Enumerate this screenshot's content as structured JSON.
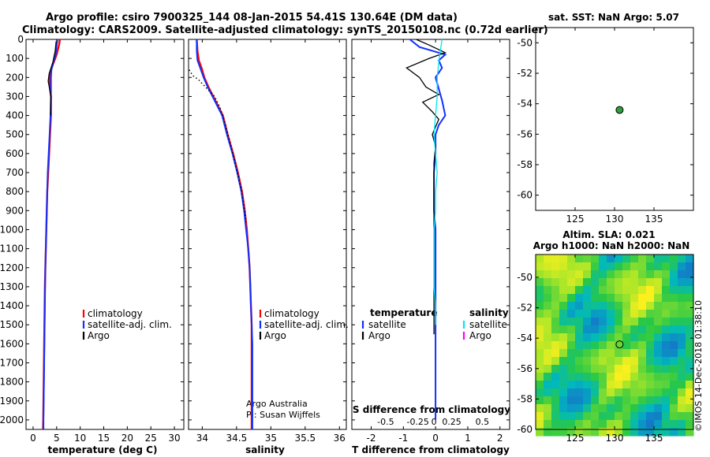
{
  "header": {
    "line1": "Argo profile: csiro 7900325_144 08-Jan-2015 54.41S 130.64E (DM data)",
    "line2": "Climatology: CARS2009. Satellite-adjusted climatology: synTS_20150108.nc (0.72d earlier)"
  },
  "colors": {
    "climatology": "#ff0000",
    "satellite": "#1030ff",
    "argo": "#000000",
    "sat_salinity": "#00e5ee",
    "argo_salinity": "#ff00ff",
    "marker": "#2e9e3a"
  },
  "chart_data": [
    {
      "id": "temperature",
      "type": "line",
      "xlabel": "temperature (deg C)",
      "ylabel": "",
      "xlim": [
        -1.5,
        32
      ],
      "ylim": [
        2050,
        0
      ],
      "x_ticks": [
        0,
        5,
        10,
        15,
        20,
        25,
        30
      ],
      "y_ticks": [
        0,
        100,
        200,
        300,
        400,
        500,
        600,
        700,
        800,
        900,
        1000,
        1100,
        1200,
        1300,
        1400,
        1500,
        1600,
        1700,
        1800,
        1900,
        2000
      ],
      "legend": {
        "placement": "center-right",
        "entries": [
          "climatology",
          "satellite-adj. clim.",
          "Argo"
        ]
      },
      "series": [
        {
          "name": "climatology",
          "color": "#ff0000",
          "points": [
            [
              5.7,
              0
            ],
            [
              5.5,
              30
            ],
            [
              5.0,
              80
            ],
            [
              4.4,
              120
            ],
            [
              3.8,
              160
            ],
            [
              3.5,
              200
            ],
            [
              3.6,
              260
            ],
            [
              3.8,
              300
            ],
            [
              3.8,
              400
            ],
            [
              3.6,
              500
            ],
            [
              3.4,
              600
            ],
            [
              3.2,
              700
            ],
            [
              3.0,
              800
            ],
            [
              2.9,
              900
            ],
            [
              2.8,
              1000
            ],
            [
              2.7,
              1100
            ],
            [
              2.6,
              1200
            ],
            [
              2.5,
              1300
            ],
            [
              2.45,
              1400
            ],
            [
              2.4,
              1500
            ],
            [
              2.35,
              1600
            ],
            [
              2.3,
              1700
            ],
            [
              2.25,
              1800
            ],
            [
              2.2,
              1900
            ],
            [
              2.15,
              2000
            ],
            [
              2.1,
              2050
            ]
          ]
        },
        {
          "name": "satellite-adj. clim.",
          "color": "#1030ff",
          "points": [
            [
              5.2,
              0
            ],
            [
              5.0,
              30
            ],
            [
              4.8,
              80
            ],
            [
              4.3,
              120
            ],
            [
              3.9,
              160
            ],
            [
              3.8,
              200
            ],
            [
              3.8,
              260
            ],
            [
              3.8,
              300
            ],
            [
              3.7,
              400
            ],
            [
              3.5,
              500
            ],
            [
              3.3,
              600
            ],
            [
              3.1,
              700
            ],
            [
              3.0,
              800
            ],
            [
              2.9,
              900
            ],
            [
              2.8,
              1000
            ],
            [
              2.7,
              1100
            ],
            [
              2.6,
              1200
            ],
            [
              2.55,
              1300
            ],
            [
              2.5,
              1400
            ],
            [
              2.45,
              1500
            ],
            [
              2.4,
              1600
            ],
            [
              2.35,
              1700
            ],
            [
              2.3,
              1800
            ],
            [
              2.25,
              1900
            ],
            [
              2.2,
              2000
            ],
            [
              2.2,
              2050
            ]
          ]
        },
        {
          "name": "Argo",
          "color": "#000000",
          "points": [
            [
              4.9,
              10
            ],
            [
              4.7,
              60
            ],
            [
              4.2,
              120
            ],
            [
              3.4,
              180
            ],
            [
              3.2,
              220
            ],
            [
              3.5,
              260
            ],
            [
              3.8,
              300
            ],
            [
              3.7,
              400
            ]
          ]
        }
      ]
    },
    {
      "id": "salinity",
      "type": "line",
      "xlabel": "salinity",
      "ylabel": "",
      "xlim": [
        33.8,
        36.1
      ],
      "ylim": [
        2050,
        0
      ],
      "x_ticks": [
        34,
        34.5,
        35,
        35.5,
        36
      ],
      "legend": {
        "placement": "center-right",
        "entries": [
          "climatology",
          "satellite-adj. clim.",
          "Argo"
        ]
      },
      "annotations": [
        "Argo Australia",
        "PI: Susan Wijffels"
      ],
      "series": [
        {
          "name": "climatology",
          "color": "#ff0000",
          "points": [
            [
              33.92,
              0
            ],
            [
              33.93,
              60
            ],
            [
              33.95,
              110
            ],
            [
              33.99,
              150
            ],
            [
              34.03,
              200
            ],
            [
              34.09,
              250
            ],
            [
              34.16,
              300
            ],
            [
              34.23,
              350
            ],
            [
              34.3,
              400
            ],
            [
              34.37,
              500
            ],
            [
              34.45,
              600
            ],
            [
              34.52,
              700
            ],
            [
              34.58,
              800
            ],
            [
              34.62,
              900
            ],
            [
              34.65,
              1000
            ],
            [
              34.67,
              1100
            ],
            [
              34.69,
              1200
            ],
            [
              34.7,
              1300
            ],
            [
              34.71,
              1400
            ],
            [
              34.72,
              1500
            ],
            [
              34.72,
              1600
            ],
            [
              34.72,
              1700
            ],
            [
              34.72,
              1800
            ],
            [
              34.72,
              1900
            ],
            [
              34.72,
              2000
            ],
            [
              34.72,
              2050
            ]
          ]
        },
        {
          "name": "satellite-adj. clim.",
          "color": "#1030ff",
          "points": [
            [
              33.92,
              0
            ],
            [
              33.92,
              60
            ],
            [
              33.93,
              110
            ],
            [
              33.97,
              150
            ],
            [
              34.02,
              200
            ],
            [
              34.08,
              250
            ],
            [
              34.15,
              300
            ],
            [
              34.22,
              350
            ],
            [
              34.29,
              400
            ],
            [
              34.36,
              500
            ],
            [
              34.44,
              600
            ],
            [
              34.51,
              700
            ],
            [
              34.57,
              800
            ],
            [
              34.61,
              900
            ],
            [
              34.64,
              1000
            ],
            [
              34.67,
              1100
            ],
            [
              34.69,
              1200
            ],
            [
              34.7,
              1300
            ],
            [
              34.71,
              1400
            ],
            [
              34.72,
              1500
            ],
            [
              34.73,
              1600
            ],
            [
              34.73,
              1700
            ],
            [
              34.73,
              1800
            ],
            [
              34.73,
              1900
            ],
            [
              34.73,
              2000
            ],
            [
              34.73,
              2050
            ]
          ]
        },
        {
          "name": "Argo",
          "color": "#000000",
          "dotted": true,
          "points": [
            [
              33.81,
              160
            ],
            [
              33.86,
              190
            ],
            [
              33.94,
              210
            ],
            [
              34.02,
              240
            ],
            [
              34.1,
              270
            ],
            [
              34.18,
              300
            ],
            [
              34.26,
              360
            ],
            [
              34.34,
              450
            ],
            [
              34.41,
              550
            ],
            [
              34.48,
              650
            ],
            [
              34.55,
              760
            ],
            [
              34.6,
              860
            ],
            [
              34.64,
              960
            ]
          ]
        }
      ]
    },
    {
      "id": "difference",
      "type": "line",
      "xlabel": "T difference from climatology",
      "secondary_label": "S difference from climatology",
      "xlim": [
        -2.6,
        2.3
      ],
      "ylim": [
        2050,
        0
      ],
      "x_ticks": [
        -2,
        -1,
        0,
        1,
        2
      ],
      "s_ticks": [
        "-0.5",
        "-0.25",
        "0",
        "0.25",
        "0.5"
      ],
      "legend": {
        "placement": "lower-center",
        "temperature_title": "temperature",
        "salinity_title": "salinity",
        "entries": [
          "satellite",
          "Argo",
          "satellite",
          "Argo"
        ]
      },
      "series": [
        {
          "name": "satellite",
          "color": "#1030ff",
          "points": [
            [
              -0.8,
              0
            ],
            [
              -0.5,
              40
            ],
            [
              0.3,
              80
            ],
            [
              0.1,
              110
            ],
            [
              0.2,
              150
            ],
            [
              0.0,
              200
            ],
            [
              0.1,
              260
            ],
            [
              0.2,
              320
            ],
            [
              0.3,
              400
            ],
            [
              0.1,
              450
            ],
            [
              0.0,
              500
            ],
            [
              0.0,
              600
            ],
            [
              -0.05,
              700
            ],
            [
              -0.05,
              800
            ],
            [
              -0.05,
              900
            ],
            [
              0.0,
              1000
            ],
            [
              0.0,
              1200
            ],
            [
              0.0,
              1400
            ],
            [
              0.0,
              1600
            ],
            [
              0.0,
              1800
            ],
            [
              0.0,
              2000
            ]
          ]
        },
        {
          "name": "Argo",
          "color": "#000000",
          "points": [
            [
              -0.6,
              0
            ],
            [
              -0.2,
              30
            ],
            [
              0.3,
              70
            ],
            [
              -0.2,
              100
            ],
            [
              -0.9,
              150
            ],
            [
              -0.5,
              200
            ],
            [
              -0.3,
              250
            ],
            [
              0.1,
              290
            ],
            [
              -0.4,
              330
            ],
            [
              -0.1,
              380
            ],
            [
              0.1,
              420
            ],
            [
              -0.1,
              500
            ],
            [
              0.0,
              560
            ],
            [
              -0.05,
              650
            ],
            [
              -0.05,
              800
            ],
            [
              -0.05,
              1000
            ],
            [
              -0.05,
              1200
            ],
            [
              -0.05,
              1400
            ],
            [
              -0.05,
              1550
            ]
          ]
        },
        {
          "name": "satellite salinity",
          "color": "#00e5ee",
          "points": [
            [
              0.2,
              0
            ],
            [
              0.15,
              60
            ],
            [
              0.1,
              120
            ],
            [
              0.05,
              200
            ],
            [
              0.05,
              300
            ],
            [
              0.0,
              400
            ],
            [
              -0.05,
              500
            ],
            [
              0.0,
              600
            ],
            [
              0.05,
              700
            ],
            [
              0.0,
              800
            ],
            [
              0.0,
              900
            ],
            [
              -0.05,
              1000
            ],
            [
              -0.05,
              1100
            ],
            [
              -0.05,
              1200
            ],
            [
              -0.05,
              1300
            ],
            [
              0.0,
              1400
            ],
            [
              0.0,
              1500
            ]
          ]
        }
      ]
    },
    {
      "id": "location",
      "type": "scatter",
      "title": "sat. SST: NaN Argo: 5.07",
      "xlim": [
        120,
        140
      ],
      "ylim": [
        -61,
        -49
      ],
      "x_ticks": [
        125,
        130,
        135
      ],
      "y_ticks": [
        -50,
        -52,
        -54,
        -56,
        -58,
        -60
      ],
      "points": [
        [
          130.64,
          -54.41
        ]
      ]
    },
    {
      "id": "sla_map",
      "type": "heatmap",
      "title_line1": "Altim. SLA: 0.021",
      "title_line2": "Argo h1000: NaN h2000: NaN",
      "xlim": [
        120,
        140
      ],
      "ylim": [
        -60,
        -48.5
      ],
      "x_ticks": [
        125,
        130,
        135
      ],
      "y_ticks": [
        -50,
        -52,
        -54,
        -56,
        -58,
        -60
      ],
      "marker": [
        130.64,
        -54.41
      ]
    }
  ],
  "footer": {
    "credit": "©IMOS 14-Dec-2018 01:38:10"
  }
}
